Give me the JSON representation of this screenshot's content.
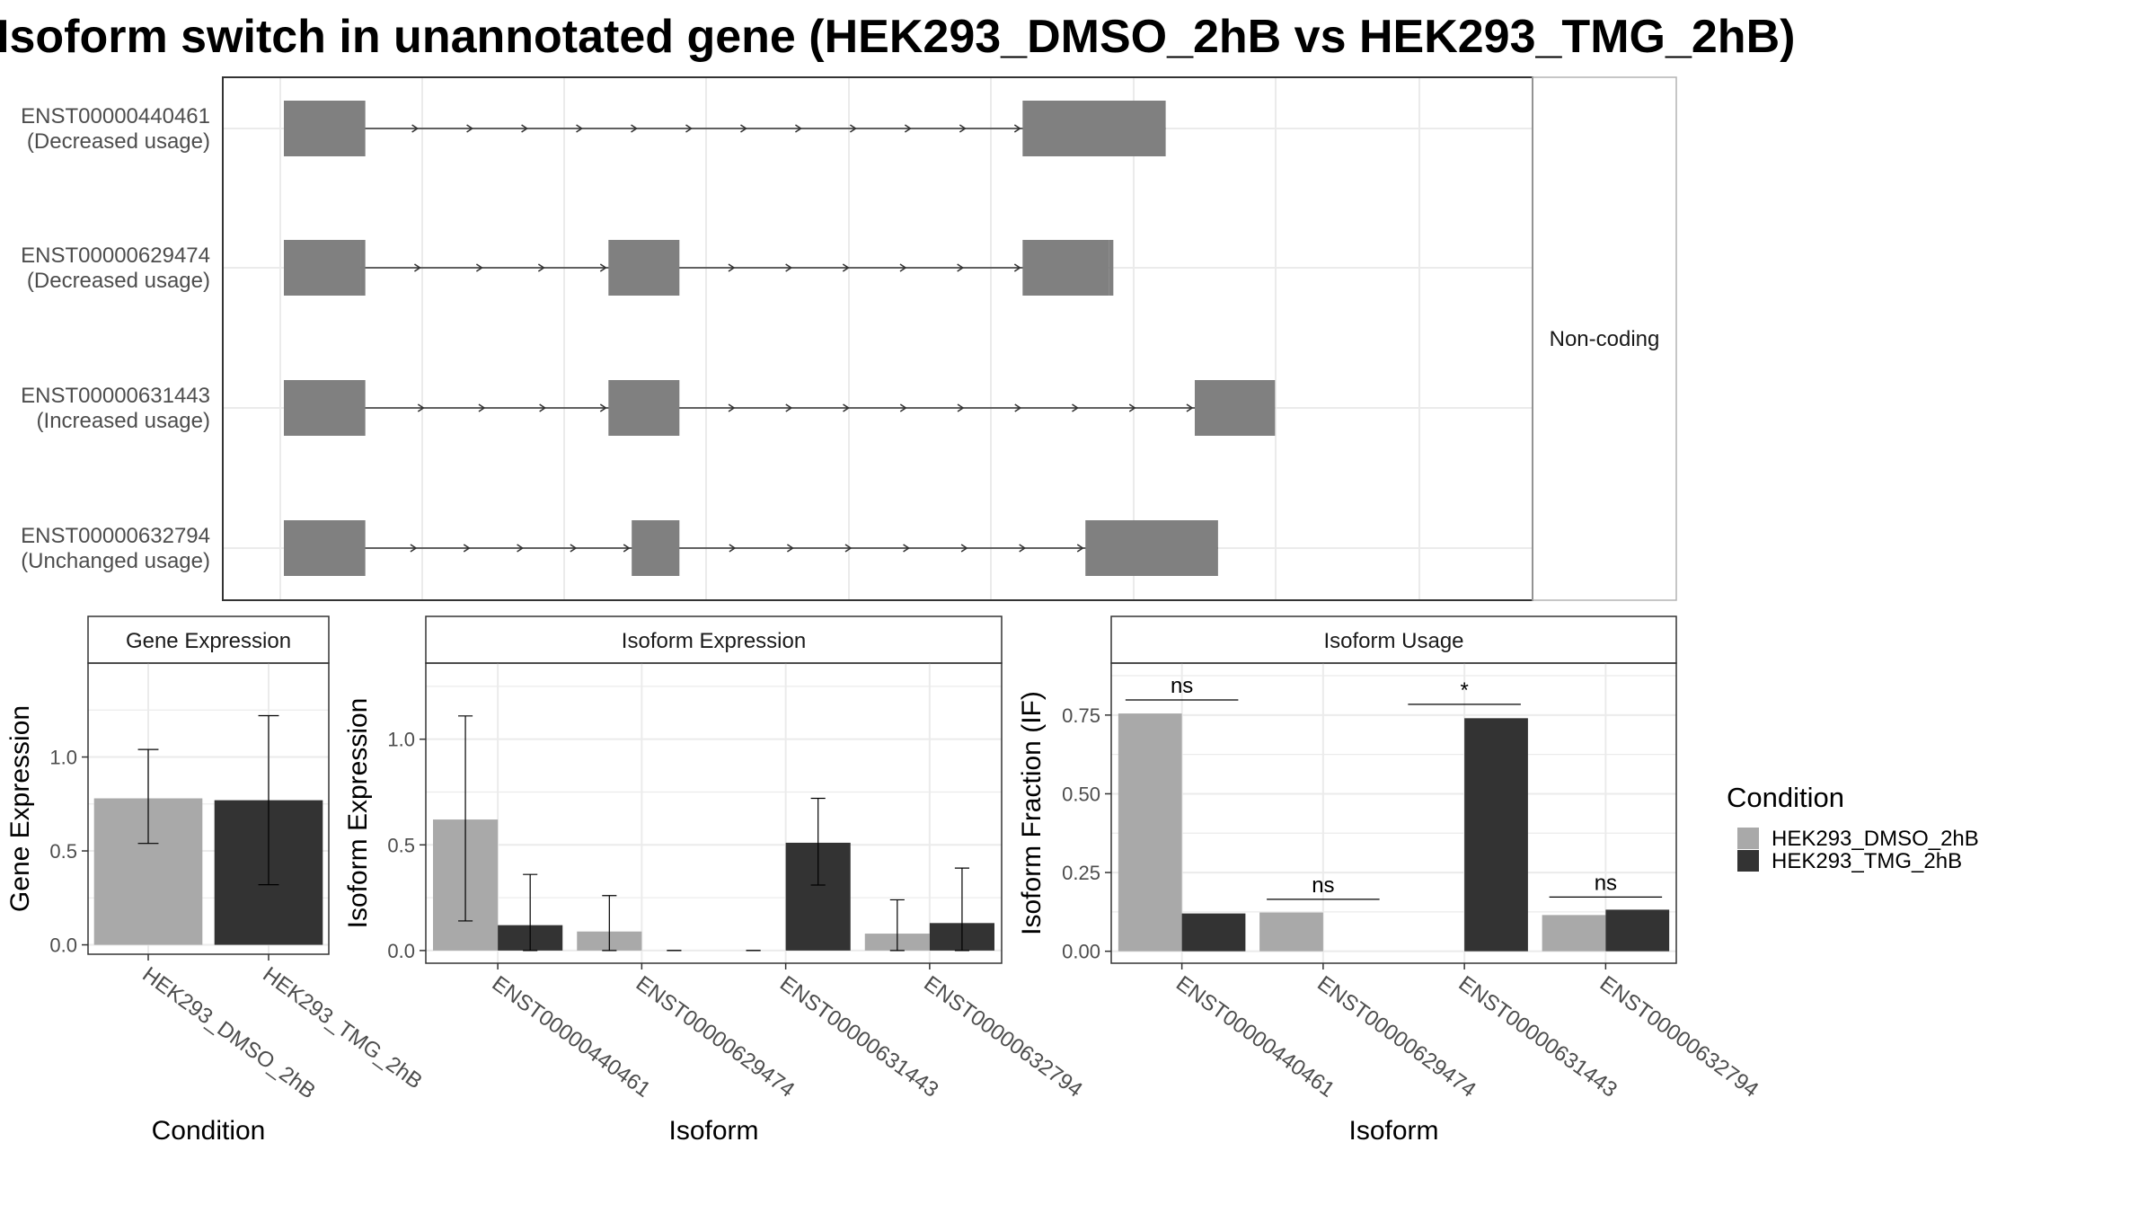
{
  "title": "Isoform switch in unannotated gene (HEK293_DMSO_2hB vs HEK293_TMG_2hB)",
  "structure": {
    "strip_label": "Non-coding",
    "transcripts": [
      {
        "id": "ENST00000440461",
        "usage": "(Decreased usage)",
        "exons": [
          [
            0,
            70
          ],
          [
            635,
            758
          ]
        ],
        "caps": [],
        "arrows": 13
      },
      {
        "id": "ENST00000629474",
        "usage": "(Decreased usage)",
        "exons": [
          [
            0,
            66
          ],
          [
            279,
            340
          ],
          [
            635,
            709
          ]
        ],
        "caps": [
          [
            66,
            70
          ],
          [
            709,
            713
          ]
        ],
        "arrows": 13
      },
      {
        "id": "ENST00000631443",
        "usage": "(Increased usage)",
        "exons": [
          [
            0,
            70
          ],
          [
            279,
            340
          ],
          [
            783,
            852
          ]
        ],
        "caps": [],
        "arrows": 18
      },
      {
        "id": "ENST00000632794",
        "usage": "(Unchanged usage)",
        "exons": [
          [
            0,
            70
          ],
          [
            299,
            340
          ],
          [
            689,
            803
          ]
        ],
        "caps": [],
        "arrows": 14
      }
    ]
  },
  "legend": {
    "title": "Condition",
    "items": [
      {
        "label": "HEK293_DMSO_2hB",
        "color": "#a9a9a9"
      },
      {
        "label": "HEK293_TMG_2hB",
        "color": "#333333"
      }
    ]
  },
  "chart_data": [
    {
      "type": "bar",
      "panel_title": "Gene Expression",
      "xlabel": "Condition",
      "ylabel": "Gene Expression",
      "ylim": [
        -0.05,
        1.5
      ],
      "yticks": [
        0.0,
        0.5,
        1.0
      ],
      "ytick_labels": [
        "0.0",
        "0.5",
        "1.0"
      ],
      "categories": [
        "HEK293_DMSO_2hB",
        "HEK293_TMG_2hB"
      ],
      "values": [
        0.78,
        0.77
      ],
      "error": [
        [
          0.54,
          1.04
        ],
        [
          0.32,
          1.22
        ]
      ],
      "colors": [
        "#a9a9a9",
        "#333333"
      ]
    },
    {
      "type": "bar",
      "panel_title": "Isoform Expression",
      "xlabel": "Isoform",
      "ylabel": "Isoform Expression",
      "ylim": [
        -0.06,
        1.36
      ],
      "yticks": [
        0.0,
        0.5,
        1.0
      ],
      "ytick_labels": [
        "0.0",
        "0.5",
        "1.0"
      ],
      "categories": [
        "ENST00000440461",
        "ENST00000629474",
        "ENST00000631443",
        "ENST00000632794"
      ],
      "series": [
        {
          "name": "HEK293_DMSO_2hB",
          "color": "#a9a9a9",
          "values": [
            0.62,
            0.09,
            0.0,
            0.08
          ],
          "error": [
            [
              0.14,
              1.11
            ],
            [
              0.0,
              0.26
            ],
            [
              0.0,
              0.0
            ],
            [
              0.0,
              0.24
            ]
          ]
        },
        {
          "name": "HEK293_TMG_2hB",
          "color": "#333333",
          "values": [
            0.12,
            0.0,
            0.51,
            0.13
          ],
          "error": [
            [
              0.0,
              0.36
            ],
            [
              0.0,
              0.0
            ],
            [
              0.31,
              0.72
            ],
            [
              0.0,
              0.39
            ]
          ]
        }
      ]
    },
    {
      "type": "bar",
      "panel_title": "Isoform Usage",
      "xlabel": "Isoform",
      "ylabel": "Isoform Fraction (IF)",
      "ylim": [
        -0.038,
        0.915
      ],
      "yticks": [
        0.0,
        0.25,
        0.5,
        0.75
      ],
      "ytick_labels": [
        "0.00",
        "0.25",
        "0.50",
        "0.75"
      ],
      "categories": [
        "ENST00000440461",
        "ENST00000629474",
        "ENST00000631443",
        "ENST00000632794"
      ],
      "series": [
        {
          "name": "HEK293_DMSO_2hB",
          "color": "#a9a9a9",
          "values": [
            0.755,
            0.123,
            0.0,
            0.115
          ]
        },
        {
          "name": "HEK293_TMG_2hB",
          "color": "#333333",
          "values": [
            0.12,
            0.0,
            0.74,
            0.132
          ]
        }
      ],
      "annotations": [
        {
          "category": 0,
          "label": "ns",
          "y": 0.798
        },
        {
          "category": 1,
          "label": "ns",
          "y": 0.165
        },
        {
          "category": 2,
          "label": "*",
          "y": 0.784
        },
        {
          "category": 3,
          "label": "ns",
          "y": 0.172
        }
      ]
    }
  ]
}
